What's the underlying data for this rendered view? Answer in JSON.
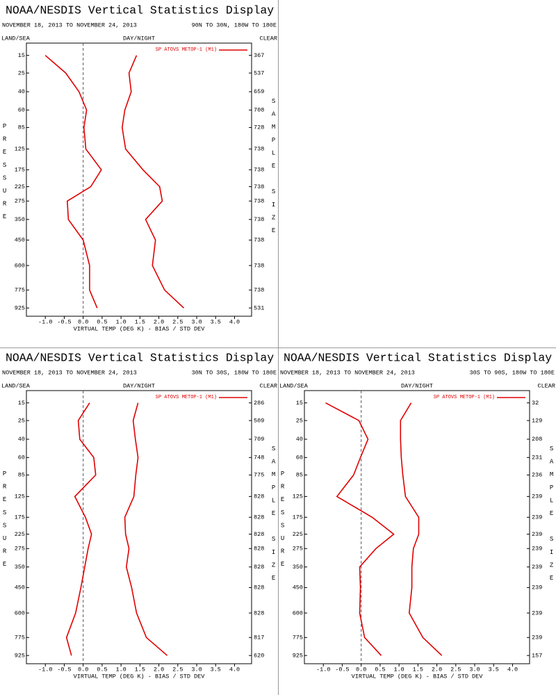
{
  "chart_data": [
    {
      "type": "profile",
      "title": "NOAA/NESDIS Vertical Statistics Display",
      "subtitle": "NOVEMBER 18, 2013 TO NOVEMBER 24, 2013",
      "region": "90N TO 30N, 180W TO 180E",
      "land_sea": "LAND/SEA",
      "day_night": "DAY/NIGHT",
      "clear": "CLEAR",
      "y_label": "PRESSURE",
      "sample_label": "SAMPLE SIZE",
      "x_label": "VIRTUAL TEMP (DEG K) - BIAS / STD DEV",
      "y": [
        15,
        25,
        40,
        60,
        85,
        125,
        175,
        225,
        275,
        350,
        450,
        600,
        775,
        925
      ],
      "sample_sizes": [
        367,
        537,
        659,
        708,
        728,
        738,
        738,
        738,
        738,
        738,
        738,
        738,
        738,
        531
      ],
      "series": [
        {
          "name": "SP ATOVS METOP-1 (M1)",
          "color": "#e00000",
          "values": [
            -1.0,
            -0.46,
            -0.11,
            0.09,
            0.02,
            0.07,
            0.48,
            0.2,
            -0.42,
            -0.39,
            0.0,
            0.17,
            0.17,
            0.37
          ],
          "std_dev": [
            1.41,
            1.21,
            1.27,
            1.1,
            1.03,
            1.12,
            1.58,
            2.02,
            2.09,
            1.65,
            1.91,
            1.83,
            2.15,
            2.66
          ]
        }
      ],
      "xlim": [
        -1.5,
        4.45
      ],
      "ylim": [
        10,
        1000
      ],
      "yscale": "power",
      "yexponent": 0.286,
      "xticks": [
        {
          "value": -1,
          "label": "-1.0"
        },
        {
          "value": -0.5,
          "label": "-0.5"
        },
        {
          "value": 0,
          "label": "0.0"
        },
        {
          "value": 0.5,
          "label": "0.5"
        },
        {
          "value": 1,
          "label": "1.0"
        },
        {
          "value": 1.5,
          "label": "1.5"
        },
        {
          "value": 2,
          "label": "2.0"
        },
        {
          "value": 2.5,
          "label": "2.5"
        },
        {
          "value": 3,
          "label": "3.0"
        },
        {
          "value": 3.5,
          "label": "3.5"
        },
        {
          "value": 4,
          "label": "4.0"
        }
      ]
    },
    {
      "type": "profile",
      "title": "NOAA/NESDIS Vertical Statistics Display",
      "subtitle": "NOVEMBER 18, 2013 TO NOVEMBER 24, 2013",
      "region": "30N TO 30S, 180W TO 180E",
      "land_sea": "LAND/SEA",
      "day_night": "DAY/NIGHT",
      "clear": "CLEAR",
      "y_label": "PRESSURE",
      "sample_label": "SAMPLE SIZE",
      "x_label": "VIRTUAL TEMP (DEG K) - BIAS / STD DEV",
      "y": [
        15,
        25,
        40,
        60,
        85,
        125,
        175,
        225,
        275,
        350,
        450,
        600,
        775,
        925
      ],
      "sample_sizes": [
        286,
        509,
        709,
        748,
        775,
        828,
        828,
        828,
        828,
        828,
        828,
        828,
        817,
        620
      ],
      "series": [
        {
          "name": "SP ATOVS METOP-1 (M1)",
          "color": "#e00000",
          "values": [
            0.17,
            -0.13,
            -0.09,
            0.28,
            0.33,
            -0.22,
            0.06,
            0.22,
            0.13,
            0.04,
            -0.06,
            -0.2,
            -0.44,
            -0.31
          ],
          "std_dev": [
            1.45,
            1.32,
            1.38,
            1.45,
            1.39,
            1.34,
            1.1,
            1.12,
            1.21,
            1.14,
            1.28,
            1.41,
            1.67,
            2.22
          ]
        }
      ],
      "xlim": [
        -1.5,
        4.45
      ],
      "ylim": [
        10,
        1000
      ],
      "yscale": "power",
      "yexponent": 0.286,
      "xticks": [
        {
          "value": -1,
          "label": "-1.0"
        },
        {
          "value": -0.5,
          "label": "-0.5"
        },
        {
          "value": 0,
          "label": "0.0"
        },
        {
          "value": 0.5,
          "label": "0.5"
        },
        {
          "value": 1,
          "label": "1.0"
        },
        {
          "value": 1.5,
          "label": "1.5"
        },
        {
          "value": 2,
          "label": "2.0"
        },
        {
          "value": 2.5,
          "label": "2.5"
        },
        {
          "value": 3,
          "label": "3.0"
        },
        {
          "value": 3.5,
          "label": "3.5"
        },
        {
          "value": 4,
          "label": "4.0"
        }
      ]
    },
    {
      "type": "profile",
      "title": "NOAA/NESDIS Vertical Statistics Display",
      "subtitle": "NOVEMBER 18, 2013 TO NOVEMBER 24, 2013",
      "region": "30S TO 90S, 180W TO 180E",
      "land_sea": "LAND/SEA",
      "day_night": "DAY/NIGHT",
      "clear": "CLEAR",
      "y_label": "PRESSURE",
      "sample_label": "SAMPLE SIZE",
      "x_label": "VIRTUAL TEMP (DEG K) - BIAS / STD DEV",
      "y": [
        15,
        25,
        40,
        60,
        85,
        125,
        175,
        225,
        275,
        350,
        450,
        600,
        775,
        925
      ],
      "sample_sizes": [
        32,
        129,
        208,
        231,
        236,
        239,
        239,
        239,
        239,
        239,
        239,
        239,
        239,
        157
      ],
      "series": [
        {
          "name": "SP ATOVS METOP-1 (M1)",
          "color": "#e00000",
          "values": [
            -0.94,
            -0.06,
            0.18,
            -0.02,
            -0.2,
            -0.64,
            0.29,
            0.86,
            0.39,
            -0.04,
            -0.02,
            -0.04,
            0.09,
            0.53
          ],
          "std_dev": [
            1.32,
            1.04,
            1.04,
            1.06,
            1.1,
            1.17,
            1.52,
            1.52,
            1.38,
            1.34,
            1.34,
            1.27,
            1.63,
            2.13
          ]
        }
      ],
      "xlim": [
        -1.5,
        4.45
      ],
      "ylim": [
        10,
        1000
      ],
      "yscale": "power",
      "yexponent": 0.286,
      "xticks": [
        {
          "value": -1,
          "label": "-1.0"
        },
        {
          "value": -0.5,
          "label": "-0.5"
        },
        {
          "value": 0,
          "label": "0.0"
        },
        {
          "value": 0.5,
          "label": "0.5"
        },
        {
          "value": 1,
          "label": "1.0"
        },
        {
          "value": 1.5,
          "label": "1.5"
        },
        {
          "value": 2,
          "label": "2.0"
        },
        {
          "value": 2.5,
          "label": "2.5"
        },
        {
          "value": 3,
          "label": "3.0"
        },
        {
          "value": 3.5,
          "label": "3.5"
        },
        {
          "value": 4,
          "label": "4.0"
        }
      ]
    }
  ]
}
